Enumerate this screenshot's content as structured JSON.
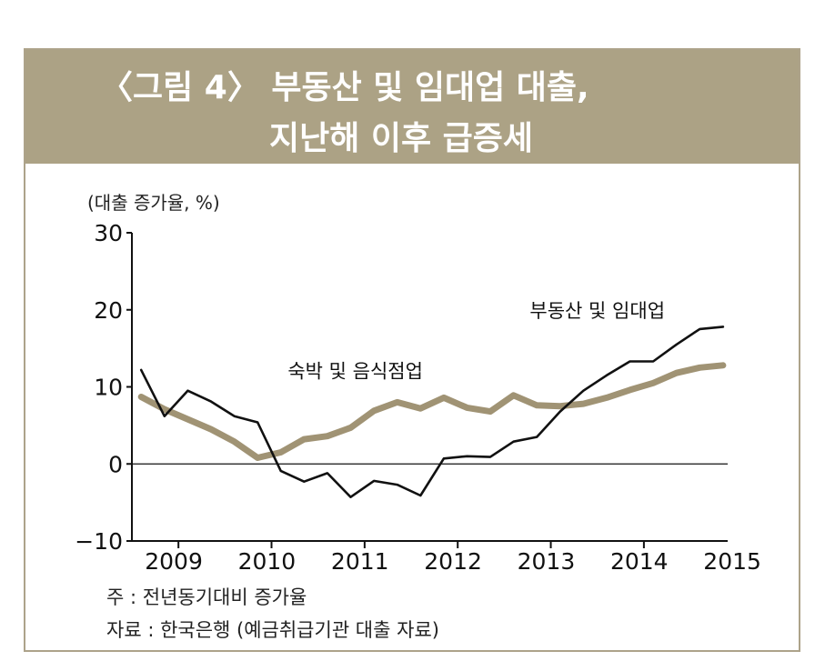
{
  "header": {
    "title_line1": "〈그림 4〉 부동산 및 임대업 대출,",
    "title_line2": "지난해 이후 급증세"
  },
  "footer": {
    "note": "주 : 전년동기대비 증가율",
    "source": "자료 : 한국은행 (예금취급기관 대출 자료)"
  },
  "colors": {
    "header_bg": "#aca285",
    "series_realestate": "#111111",
    "series_hospitality": "#a09374"
  },
  "chart_data": {
    "type": "line",
    "ylabel": "(대출 증가율, %)",
    "ylim": [
      -10,
      30
    ],
    "yticks": [
      30,
      20,
      10,
      0,
      -10
    ],
    "ytick_labels": [
      "30",
      "20",
      "10",
      "0",
      "−10"
    ],
    "xlim": [
      2009,
      2015.4
    ],
    "x_ticks": [
      2009.5,
      2010.5,
      2011.5,
      2012.5,
      2013.5,
      2014.5
    ],
    "x_labels": [
      {
        "text": "2009",
        "x": 2009
      },
      {
        "text": "2010",
        "x": 2010
      },
      {
        "text": "2011",
        "x": 2011
      },
      {
        "text": "2012",
        "x": 2012
      },
      {
        "text": "2013",
        "x": 2013
      },
      {
        "text": "2014",
        "x": 2014
      },
      {
        "text": "2015",
        "x": 2015
      }
    ],
    "zero_line": true,
    "series": [
      {
        "name": "부동산 및 임대업",
        "color": "#111111",
        "x": [
          2009.1,
          2009.35,
          2009.6,
          2009.85,
          2010.1,
          2010.35,
          2010.6,
          2010.85,
          2011.1,
          2011.35,
          2011.6,
          2011.85,
          2012.1,
          2012.35,
          2012.6,
          2012.85,
          2013.1,
          2013.35,
          2013.6,
          2013.85,
          2014.1,
          2014.35,
          2014.6,
          2014.85,
          2015.1,
          2015.35
        ],
        "values": [
          12.2,
          6.2,
          9.5,
          8.1,
          6.2,
          5.4,
          -0.9,
          -2.3,
          -1.2,
          -4.3,
          -2.2,
          -2.7,
          -4.1,
          0.7,
          1.0,
          0.9,
          2.9,
          3.5,
          6.8,
          9.5,
          11.5,
          13.3,
          13.3,
          15.5,
          17.5,
          17.8
        ]
      },
      {
        "name": "숙박 및 음식점업",
        "color": "#a09374",
        "x": [
          2009.1,
          2009.35,
          2009.6,
          2009.85,
          2010.1,
          2010.35,
          2010.6,
          2010.85,
          2011.1,
          2011.35,
          2011.6,
          2011.85,
          2012.1,
          2012.35,
          2012.6,
          2012.85,
          2013.1,
          2013.35,
          2013.6,
          2013.85,
          2014.1,
          2014.35,
          2014.6,
          2014.85,
          2015.1,
          2015.35
        ],
        "values": [
          8.7,
          7.1,
          5.8,
          4.5,
          2.9,
          0.8,
          1.5,
          3.2,
          3.6,
          4.7,
          6.9,
          8.0,
          7.2,
          8.6,
          7.3,
          6.8,
          8.9,
          7.6,
          7.5,
          7.8,
          8.6,
          9.6,
          10.5,
          11.8,
          12.5,
          12.8
        ]
      }
    ],
    "annotations": [
      {
        "text": "부동산 및 임대업",
        "x": 2014.0,
        "y": 19.0
      },
      {
        "text": "숙박 및 음식점업",
        "x": 2011.4,
        "y": 11.2
      }
    ]
  }
}
